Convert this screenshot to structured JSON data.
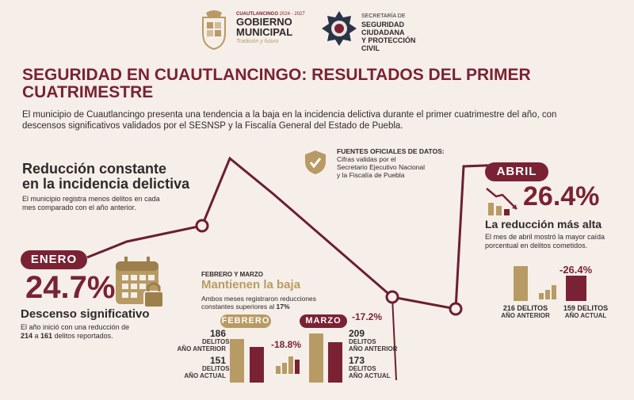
{
  "header": {
    "municipality": "CUAUTLANCINGO",
    "period": "2024 - 2027",
    "gov_line1": "GOBIERNO",
    "gov_line2": "MUNICIPAL",
    "slogan": "Tradición y futuro",
    "dept_line1": "SECRETARÍA DE",
    "dept_line2": "SEGURIDAD",
    "dept_line3": "CIUDADANA",
    "dept_line4": "Y PROTECCIÓN",
    "dept_line5": "CIVIL"
  },
  "title": {
    "line1": "SEGURIDAD EN CUAUTLANCINGO: RESULTADOS DEL PRIMER",
    "line2": "CUATRIMESTRE"
  },
  "intro": {
    "line1": "El municipio de Cuautlancingo presenta una tendencia a la baja en la incidencia delictiva durante el primer cuatrimestre del año, con",
    "line2": "descensos significativos validados por el SESNSP y la Fiscalía General del Estado de Puebla."
  },
  "reduction": {
    "title1": "Reducción constante",
    "title2": "en la incidencia delictiva",
    "desc1": "El municipio registra menos delitos en cada",
    "desc2": "mes comparado con el año anterior."
  },
  "sources": {
    "title": "FUENTES OFICIALES DE DATOS:",
    "line1": "Cifras validas por el",
    "line2": "Secretario Ejecutivo Nacional",
    "line3": "y la Fiscalía de Puebla"
  },
  "enero": {
    "label": "ENERO",
    "percent": "24.7%",
    "subtitle": "Descenso significativo",
    "desc1": "El año inició con una reducción de",
    "from": "214",
    "mid": " a ",
    "to": "161",
    "desc2": " delitos reportados."
  },
  "febmar": {
    "overline": "FEBRERO Y MARZO",
    "title": "Mantienen la baja",
    "desc1": "Ambos meses registraron reducciones",
    "desc2": "constantes superiores al ",
    "desc2_bold": "17%"
  },
  "febrero": {
    "label": "FEBRERO",
    "prev_value": "186",
    "prev_label1": "DELITOS",
    "prev_label2": "AÑO ANTERIOR",
    "curr_value": "151",
    "curr_label1": "DELITOS",
    "curr_label2": "AÑO ACTUAL",
    "change": "-18.8%",
    "prev": 186,
    "curr": 151
  },
  "marzo": {
    "label": "MARZO",
    "change": "-17.2%",
    "prev_value": "209",
    "prev_label1": "DELITOS",
    "prev_label2": "AÑO ANTERIOR",
    "curr_value": "173",
    "curr_label1": "DELITOS",
    "curr_label2": "AÑO ACTUAL",
    "prev": 209,
    "curr": 173
  },
  "abril": {
    "label": "ABRIL",
    "percent": "26.4%",
    "subtitle": "La reducción más alta",
    "desc1": "El mes de abril mostró la mayor caída",
    "desc2": "porcentual en delitos cometidos.",
    "change": "-26.4%",
    "prev_value": "216 DELITOS",
    "prev_label": "AÑO ANTERIOR",
    "curr_value": "159 DELITOS",
    "curr_label": "AÑO ACTUAL",
    "prev": 216,
    "curr": 159
  },
  "colors": {
    "maroon": "#7a2233",
    "gold": "#b89b64",
    "background": "#f6efe9"
  }
}
